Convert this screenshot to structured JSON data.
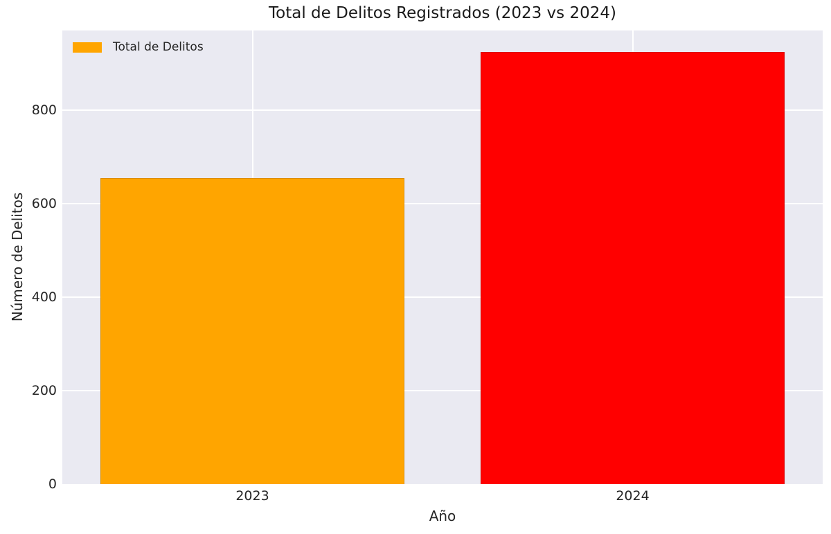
{
  "chart_data": {
    "type": "bar",
    "title": "Total de Delitos Registrados (2023 vs 2024)",
    "categories": [
      "2023",
      "2024"
    ],
    "series": [
      {
        "name": "Total de Delitos",
        "values": [
          655,
          925
        ]
      }
    ],
    "bar_colors": [
      "#FFA500",
      "#FF0000"
    ],
    "xlabel": "Año",
    "ylabel": "Número de Delitos",
    "yticks": [
      0,
      200,
      400,
      600,
      800
    ],
    "ylim": [
      0,
      971
    ],
    "grid": true,
    "plot_background_color": "#EAEAF2",
    "grid_color": "#FFFFFF",
    "legend": {
      "position": "upper left",
      "label": "Total de Delitos",
      "swatch_color": "#FFA500"
    }
  }
}
